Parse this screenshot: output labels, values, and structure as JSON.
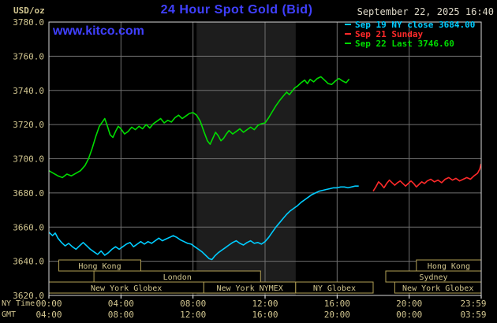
{
  "header": {
    "title": "24 Hour Spot Gold (Bid)",
    "datetime": "September 22, 2025 16:40",
    "site": "www.kitco.com",
    "unit": "USD/oz"
  },
  "legend": {
    "items": [
      {
        "text": "Sep 19 NY close 3684.00",
        "color": "#00ccff"
      },
      {
        "text": "Sep 21 Sunday",
        "color": "#ff2a2a"
      },
      {
        "text": "Sep 22 Last 3746.60",
        "color": "#00dc00"
      }
    ]
  },
  "colors": {
    "background": "#000000",
    "grid": "#707070",
    "frame": "#d9d9d9",
    "band": "#1d1d1d",
    "tan": "#d2c690",
    "title_blue": "#4040ff",
    "date": "#ded9c8",
    "session_border": "#b2a055",
    "session_text": "#d2c68e",
    "tick_white": "#ffffff"
  },
  "chart_data": {
    "type": "line",
    "title": "24 Hour Spot Gold (Bid)",
    "ylabel": "USD/oz",
    "grid": true,
    "legend_position": "top-right",
    "ylim": [
      3620,
      3780
    ],
    "y_ticks": [
      3780,
      3760,
      3740,
      3720,
      3700,
      3680,
      3660,
      3640,
      3620
    ],
    "x_range_hours": [
      0,
      24
    ],
    "x_axis": {
      "label_primary": "NY Time",
      "label_secondary": "GMT",
      "tick_hours": [
        0,
        4,
        8,
        12,
        16,
        20,
        24
      ],
      "primary_ticks": [
        "00:00",
        "04:00",
        "08:00",
        "12:00",
        "16:00",
        "20:00",
        "23:59"
      ],
      "secondary_ticks": [
        "04:00",
        "08:00",
        "12:00",
        "16:00",
        "20:00",
        "00:00",
        "03:59"
      ]
    },
    "nymex_band_hours": [
      8.2,
      13.7
    ],
    "sessions": [
      {
        "row": 0,
        "label": "Hong Kong",
        "start": 0.55,
        "end": 5.1
      },
      {
        "row": 0,
        "label": "Hong Kong",
        "start": 20.4,
        "end": 24
      },
      {
        "row": 1,
        "label": "London",
        "start": 2.5,
        "end": 11.75
      },
      {
        "row": 1,
        "label": "Sydney",
        "start": 18.7,
        "end": 24
      },
      {
        "row": 2,
        "label": "New York Globex",
        "start": 0,
        "end": 8.6
      },
      {
        "row": 2,
        "label": "New York NYMEX",
        "start": 8.6,
        "end": 13.7
      },
      {
        "row": 2,
        "label": "NY Globex",
        "start": 13.7,
        "end": 18.0
      },
      {
        "row": 2,
        "label": "New York Globex",
        "start": 19.2,
        "end": 24
      }
    ],
    "series": [
      {
        "id": "sep22",
        "name": "Sep 22",
        "last": 3746.6,
        "color": "#00dc00",
        "points": [
          [
            0,
            3693
          ],
          [
            0.25,
            3691.5
          ],
          [
            0.5,
            3690
          ],
          [
            0.75,
            3689
          ],
          [
            1,
            3691
          ],
          [
            1.25,
            3690
          ],
          [
            1.5,
            3691.5
          ],
          [
            1.75,
            3693
          ],
          [
            2,
            3696
          ],
          [
            2.2,
            3700
          ],
          [
            2.4,
            3706
          ],
          [
            2.6,
            3713
          ],
          [
            2.8,
            3719
          ],
          [
            3,
            3722
          ],
          [
            3.1,
            3723.5
          ],
          [
            3.25,
            3719
          ],
          [
            3.4,
            3714
          ],
          [
            3.55,
            3712.5
          ],
          [
            3.7,
            3716
          ],
          [
            3.85,
            3719
          ],
          [
            4,
            3717.5
          ],
          [
            4.2,
            3714.5
          ],
          [
            4.4,
            3716
          ],
          [
            4.6,
            3718.5
          ],
          [
            4.8,
            3717
          ],
          [
            5,
            3719
          ],
          [
            5.2,
            3717.5
          ],
          [
            5.4,
            3720
          ],
          [
            5.6,
            3718
          ],
          [
            5.8,
            3720.5
          ],
          [
            6,
            3722
          ],
          [
            6.2,
            3723.5
          ],
          [
            6.4,
            3721
          ],
          [
            6.6,
            3722.5
          ],
          [
            6.8,
            3721.5
          ],
          [
            7,
            3724
          ],
          [
            7.2,
            3725.5
          ],
          [
            7.4,
            3723.5
          ],
          [
            7.6,
            3725
          ],
          [
            7.8,
            3726.5
          ],
          [
            8,
            3727
          ],
          [
            8.2,
            3725.5
          ],
          [
            8.4,
            3722
          ],
          [
            8.6,
            3716
          ],
          [
            8.8,
            3710.5
          ],
          [
            8.95,
            3708.5
          ],
          [
            9.1,
            3712
          ],
          [
            9.25,
            3715.5
          ],
          [
            9.4,
            3713.5
          ],
          [
            9.55,
            3710.5
          ],
          [
            9.7,
            3712
          ],
          [
            9.85,
            3714.5
          ],
          [
            10,
            3716.5
          ],
          [
            10.2,
            3714.5
          ],
          [
            10.4,
            3716
          ],
          [
            10.6,
            3717.5
          ],
          [
            10.8,
            3715.5
          ],
          [
            11,
            3717
          ],
          [
            11.2,
            3718.5
          ],
          [
            11.4,
            3717
          ],
          [
            11.6,
            3719.5
          ],
          [
            11.8,
            3720.5
          ],
          [
            12,
            3721
          ],
          [
            12.2,
            3724
          ],
          [
            12.4,
            3727.5
          ],
          [
            12.6,
            3731
          ],
          [
            12.8,
            3734
          ],
          [
            13,
            3736.5
          ],
          [
            13.2,
            3739
          ],
          [
            13.35,
            3737.5
          ],
          [
            13.5,
            3739.5
          ],
          [
            13.65,
            3741.5
          ],
          [
            13.8,
            3742.5
          ],
          [
            14,
            3744.5
          ],
          [
            14.2,
            3746
          ],
          [
            14.35,
            3744
          ],
          [
            14.5,
            3746.5
          ],
          [
            14.7,
            3745
          ],
          [
            14.9,
            3747
          ],
          [
            15.1,
            3748
          ],
          [
            15.3,
            3746
          ],
          [
            15.5,
            3744
          ],
          [
            15.7,
            3743.5
          ],
          [
            15.9,
            3745.5
          ],
          [
            16.1,
            3747
          ],
          [
            16.3,
            3745.5
          ],
          [
            16.5,
            3744.5
          ],
          [
            16.67,
            3746.6
          ]
        ]
      },
      {
        "id": "sep19",
        "name": "Sep 19",
        "ny_close": 3684.0,
        "color": "#00ccff",
        "points": [
          [
            0,
            3657
          ],
          [
            0.2,
            3655
          ],
          [
            0.35,
            3656.5
          ],
          [
            0.5,
            3653.5
          ],
          [
            0.7,
            3651
          ],
          [
            0.9,
            3649
          ],
          [
            1.1,
            3650.5
          ],
          [
            1.3,
            3648.5
          ],
          [
            1.5,
            3647
          ],
          [
            1.7,
            3649
          ],
          [
            1.9,
            3651
          ],
          [
            2.1,
            3649
          ],
          [
            2.3,
            3647
          ],
          [
            2.5,
            3645.5
          ],
          [
            2.7,
            3644
          ],
          [
            2.9,
            3646
          ],
          [
            3.1,
            3643.5
          ],
          [
            3.3,
            3645
          ],
          [
            3.5,
            3647
          ],
          [
            3.7,
            3648.5
          ],
          [
            3.9,
            3647
          ],
          [
            4.1,
            3648.5
          ],
          [
            4.3,
            3650
          ],
          [
            4.5,
            3651
          ],
          [
            4.7,
            3648.5
          ],
          [
            4.9,
            3650
          ],
          [
            5.1,
            3651.5
          ],
          [
            5.3,
            3650
          ],
          [
            5.5,
            3651.5
          ],
          [
            5.7,
            3650.5
          ],
          [
            5.9,
            3652
          ],
          [
            6.1,
            3653.5
          ],
          [
            6.3,
            3652
          ],
          [
            6.5,
            3653
          ],
          [
            6.7,
            3654
          ],
          [
            6.9,
            3655
          ],
          [
            7.1,
            3654
          ],
          [
            7.3,
            3652.5
          ],
          [
            7.5,
            3651.5
          ],
          [
            7.7,
            3650.5
          ],
          [
            7.9,
            3650
          ],
          [
            8.1,
            3648.5
          ],
          [
            8.3,
            3647
          ],
          [
            8.5,
            3645.5
          ],
          [
            8.7,
            3643.5
          ],
          [
            8.9,
            3641.5
          ],
          [
            9.05,
            3641
          ],
          [
            9.2,
            3643
          ],
          [
            9.4,
            3645
          ],
          [
            9.6,
            3646.5
          ],
          [
            9.8,
            3648
          ],
          [
            10,
            3649.5
          ],
          [
            10.2,
            3651
          ],
          [
            10.4,
            3652
          ],
          [
            10.6,
            3650.5
          ],
          [
            10.8,
            3649.5
          ],
          [
            11,
            3651
          ],
          [
            11.2,
            3652
          ],
          [
            11.4,
            3650.5
          ],
          [
            11.6,
            3651
          ],
          [
            11.8,
            3650
          ],
          [
            12,
            3651.5
          ],
          [
            12.2,
            3654
          ],
          [
            12.4,
            3657
          ],
          [
            12.6,
            3660
          ],
          [
            12.8,
            3662.5
          ],
          [
            13,
            3665
          ],
          [
            13.2,
            3667.5
          ],
          [
            13.4,
            3669.5
          ],
          [
            13.6,
            3671
          ],
          [
            13.8,
            3672.5
          ],
          [
            14,
            3674.5
          ],
          [
            14.2,
            3676
          ],
          [
            14.4,
            3677.5
          ],
          [
            14.6,
            3679
          ],
          [
            14.8,
            3680
          ],
          [
            15,
            3681
          ],
          [
            15.2,
            3681.5
          ],
          [
            15.4,
            3682
          ],
          [
            15.6,
            3682.5
          ],
          [
            15.8,
            3683
          ],
          [
            16,
            3683
          ],
          [
            16.2,
            3683.5
          ],
          [
            16.4,
            3683.5
          ],
          [
            16.6,
            3683
          ],
          [
            16.8,
            3683.5
          ],
          [
            17,
            3684
          ],
          [
            17.2,
            3684
          ]
        ]
      },
      {
        "id": "sep21",
        "name": "Sep 21 Sunday",
        "color": "#ff2a2a",
        "points": [
          [
            18,
            3681
          ],
          [
            18.15,
            3683.5
          ],
          [
            18.3,
            3686.5
          ],
          [
            18.45,
            3685
          ],
          [
            18.6,
            3683
          ],
          [
            18.75,
            3685.5
          ],
          [
            18.9,
            3687.5
          ],
          [
            19.05,
            3686
          ],
          [
            19.2,
            3684.5
          ],
          [
            19.35,
            3686
          ],
          [
            19.5,
            3687
          ],
          [
            19.65,
            3685.5
          ],
          [
            19.8,
            3684
          ],
          [
            19.95,
            3685.5
          ],
          [
            20.1,
            3687
          ],
          [
            20.25,
            3685.5
          ],
          [
            20.4,
            3683.5
          ],
          [
            20.55,
            3685
          ],
          [
            20.7,
            3686.5
          ],
          [
            20.85,
            3685.5
          ],
          [
            21,
            3687
          ],
          [
            21.2,
            3688
          ],
          [
            21.4,
            3686.5
          ],
          [
            21.6,
            3687.5
          ],
          [
            21.8,
            3686
          ],
          [
            22,
            3688
          ],
          [
            22.2,
            3689
          ],
          [
            22.4,
            3687.5
          ],
          [
            22.6,
            3688.5
          ],
          [
            22.8,
            3687
          ],
          [
            23,
            3688
          ],
          [
            23.2,
            3689
          ],
          [
            23.4,
            3688
          ],
          [
            23.6,
            3690
          ],
          [
            23.8,
            3691.5
          ],
          [
            23.92,
            3694
          ],
          [
            23.99,
            3697
          ]
        ]
      }
    ]
  }
}
